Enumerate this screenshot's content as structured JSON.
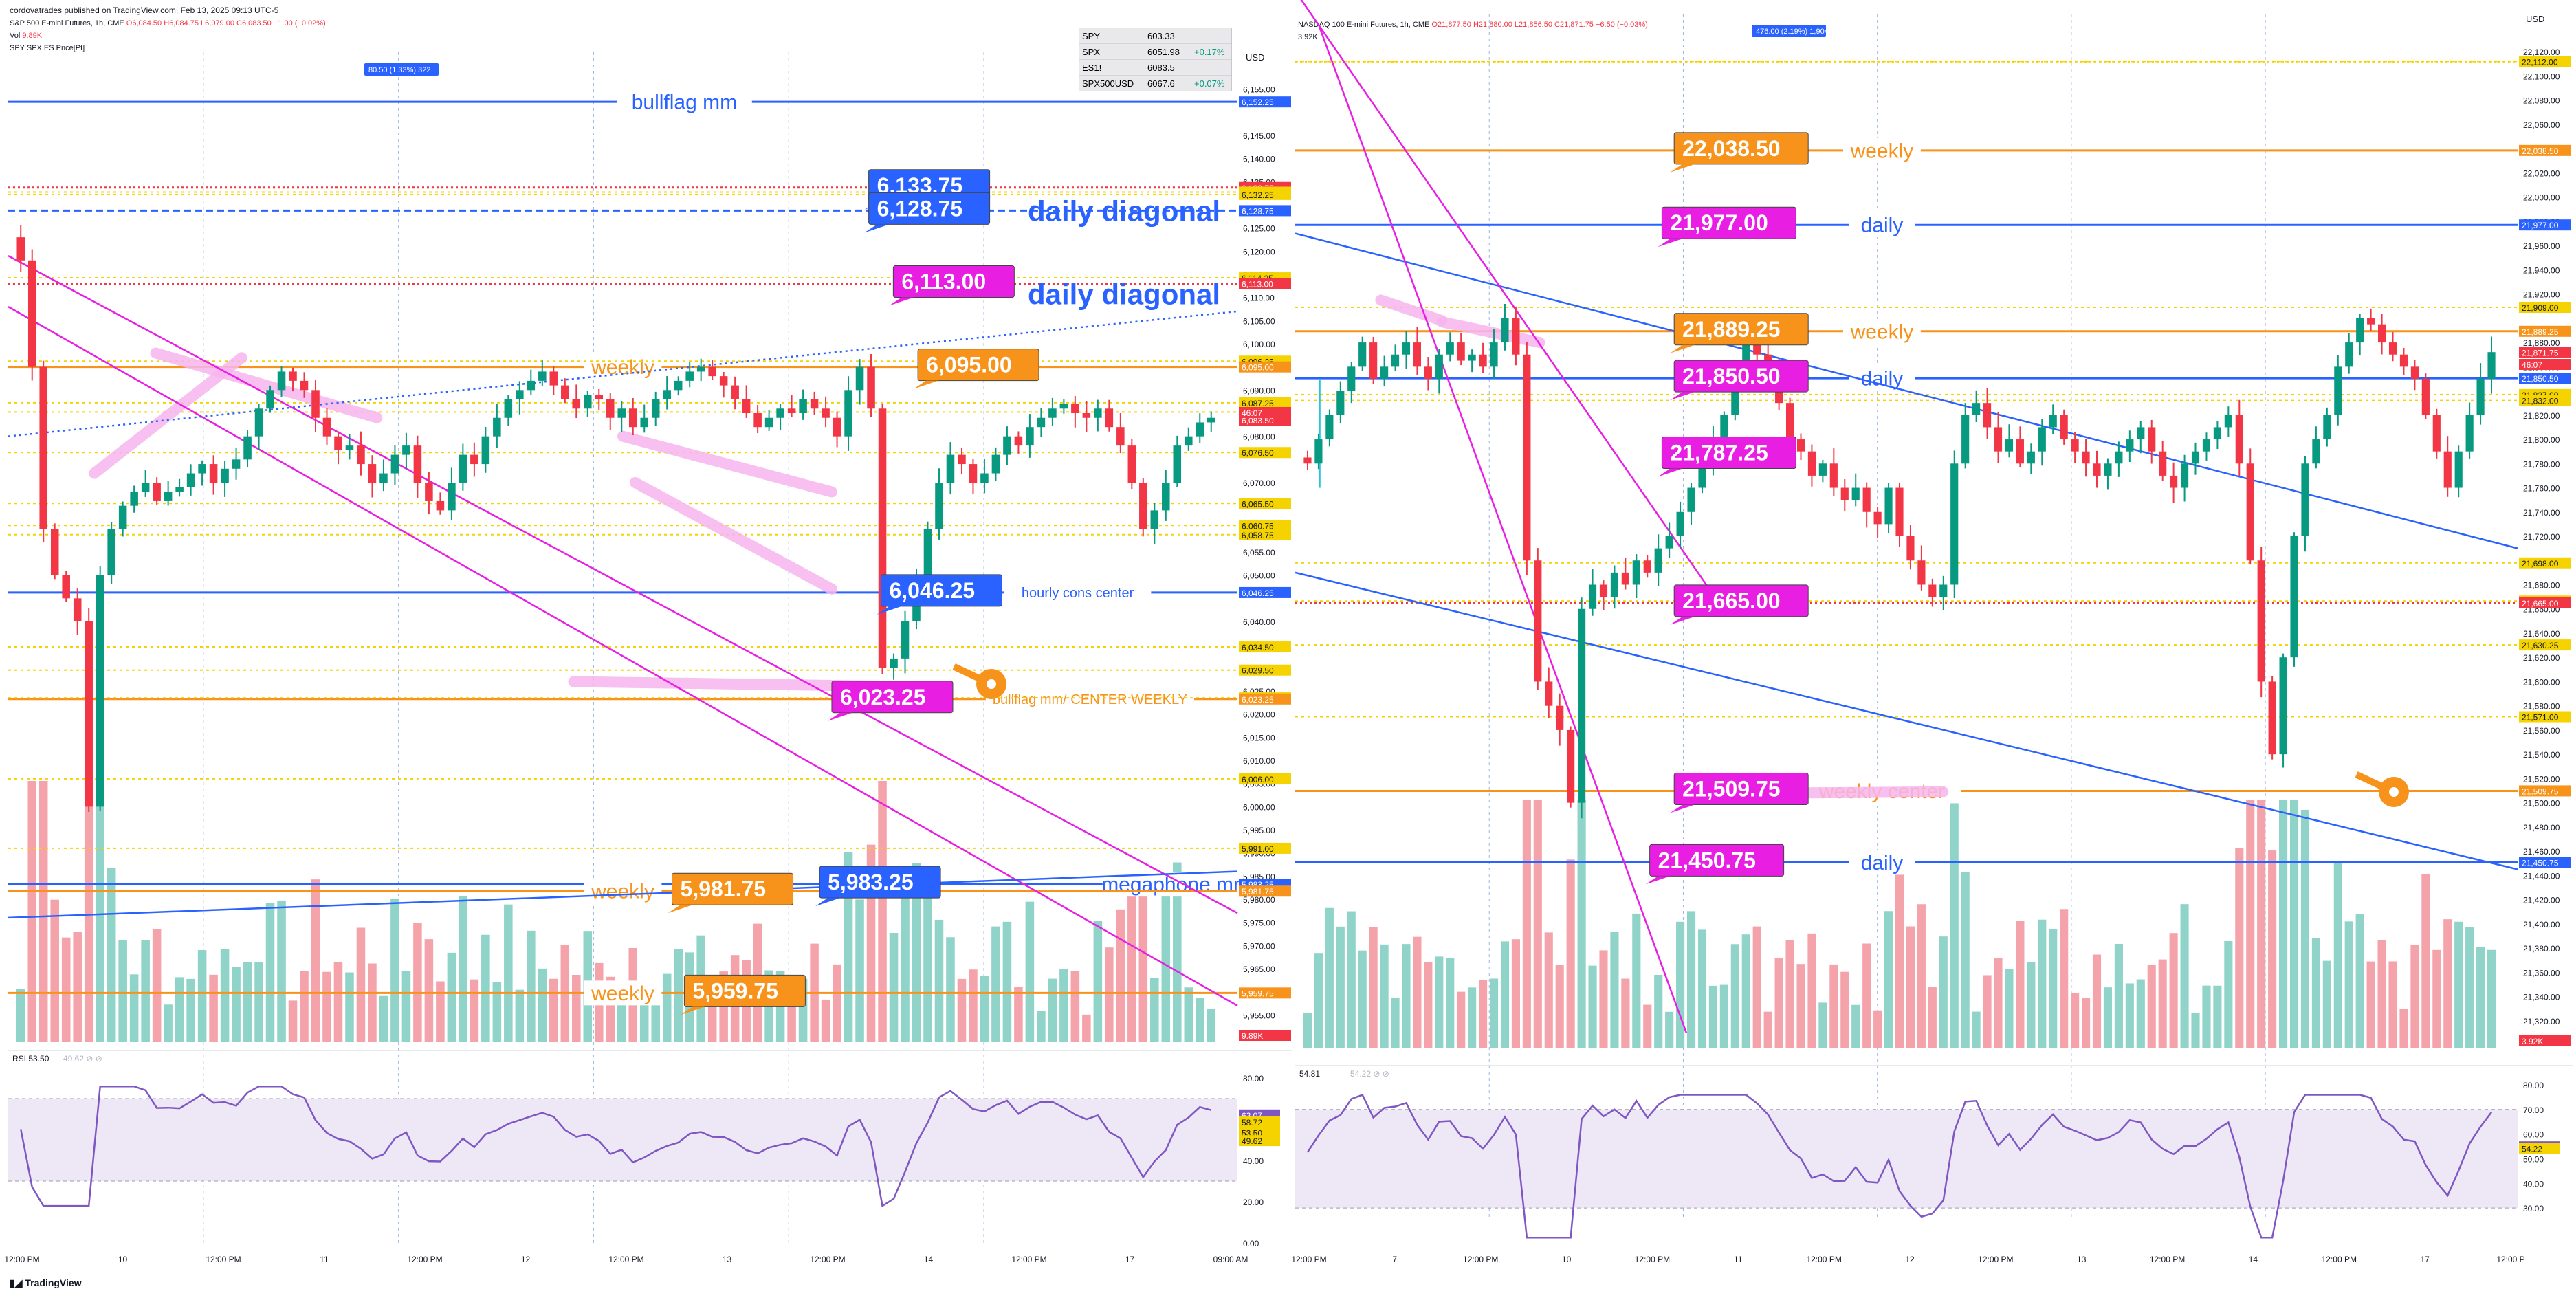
{
  "header": {
    "publisher": "cordovatrades published on TradingView.com, Feb 13, 2025 09:13 UTC-5",
    "brand": "TradingView"
  },
  "colors": {
    "orange": "#f7931a",
    "blue": "#2962ff",
    "magenta": "#e91ee3",
    "pink_highlight": "#f7b6ee",
    "up": "#089981",
    "down": "#f23645",
    "up_vol": "#8fd3c9",
    "down_vol": "#f5a3aa",
    "rsi_line": "#7e57c2",
    "rsi_band": "#ede7f6"
  },
  "left_chart": {
    "title": "S&P 500 E-mini Futures, 1h, CME",
    "ohlc": {
      "o": "O6,084.50",
      "h": "H6,084.75",
      "l": "L6,079.00",
      "c": "C6,083.50",
      "chg": "−1.00 (−0.02%)"
    },
    "vol_label": "Vol",
    "vol_value": "9.89K",
    "indicator_label": "SPY SPX ES Price[Pt]",
    "badge": "80.50 (1.33%) 322",
    "currency": "USD",
    "watchlist": [
      {
        "sym": "SPY",
        "price": "603.33",
        "chg": ""
      },
      {
        "sym": "SPX",
        "price": "6051.98",
        "chg": "+0.17%"
      },
      {
        "sym": "ES1!",
        "price": "6083.5",
        "chg": ""
      },
      {
        "sym": "SPX500USD",
        "price": "6067.6",
        "chg": "+0.07%"
      }
    ],
    "axis_ticks": [
      "6,155.00",
      "6,145.00",
      "6,140.00",
      "6,135.00",
      "6,125.00",
      "6,120.00",
      "6,115.00",
      "6,110.00",
      "6,105.00",
      "6,100.00",
      "6,090.00",
      "6,080.00",
      "6,070.00",
      "6,060.00",
      "6,055.00",
      "6,050.00",
      "6,040.00",
      "6,035.00",
      "6,025.00",
      "6,020.00",
      "6,015.00",
      "6,010.00",
      "6,005.00",
      "6,000.00",
      "5,995.00",
      "5,990.00",
      "5,985.00",
      "5,980.00",
      "5,975.00",
      "5,970.00",
      "5,965.00",
      "5,960.00",
      "5,955.00"
    ],
    "axis_tags": [
      {
        "label": "6,152.25",
        "kind": "blue"
      },
      {
        "label": "6,133.75",
        "kind": "red"
      },
      {
        "label": "6,132.75",
        "kind": "yellow"
      },
      {
        "label": "6,132.25",
        "kind": "yellow"
      },
      {
        "label": "6,128.75",
        "kind": "blue"
      },
      {
        "label": "6,114.25",
        "kind": "yellow"
      },
      {
        "label": "6,113.00",
        "kind": "red"
      },
      {
        "label": "6,096.25",
        "kind": "yellow"
      },
      {
        "label": "6,095.00",
        "kind": "orange"
      },
      {
        "label": "6,087.25",
        "kind": "yellow"
      },
      {
        "label": "6,085.25",
        "kind": "yellow"
      },
      {
        "label": "6,083.50",
        "kind": "red"
      },
      {
        "label": "46:07",
        "kind": "red"
      },
      {
        "label": "6,076.50",
        "kind": "yellow"
      },
      {
        "label": "6,065.50",
        "kind": "yellow"
      },
      {
        "label": "6,060.75",
        "kind": "yellow"
      },
      {
        "label": "6,058.75",
        "kind": "yellow"
      },
      {
        "label": "6,046.25",
        "kind": "blue"
      },
      {
        "label": "6,034.50",
        "kind": "yellow"
      },
      {
        "label": "6,029.50",
        "kind": "yellow"
      },
      {
        "label": "6,023.50",
        "kind": "yellow"
      },
      {
        "label": "6,023.25",
        "kind": "orange"
      },
      {
        "label": "6,006.00",
        "kind": "yellow"
      },
      {
        "label": "5,991.00",
        "kind": "yellow"
      },
      {
        "label": "5,983.25",
        "kind": "blue"
      },
      {
        "label": "5,981.75",
        "kind": "orange"
      },
      {
        "label": "5,959.75",
        "kind": "orange"
      },
      {
        "label": "9.89K",
        "kind": "red"
      }
    ],
    "levels": [
      {
        "price": 6152.25,
        "style": "solid",
        "color": "blue",
        "label": "bullflag mm",
        "label_x": 0.55
      },
      {
        "price": 6133.75,
        "style": "dotted",
        "color": "red",
        "label": ""
      },
      {
        "price": 6128.75,
        "style": "dashed",
        "color": "blue",
        "label": ""
      },
      {
        "price": 6113.0,
        "style": "dotted",
        "color": "red",
        "label": ""
      },
      {
        "price": 6095.0,
        "style": "solid",
        "color": "orange",
        "label": "weekly",
        "label_x": 0.5
      },
      {
        "price": 6046.25,
        "style": "solid",
        "color": "blue",
        "label": "hourly cons center",
        "label_x": 0.87
      },
      {
        "price": 6023.25,
        "style": "solid",
        "color": "orange",
        "label": "bullflag mm/ CENTER WEEKLY",
        "label_x": 0.88
      },
      {
        "price": 5983.25,
        "style": "solid",
        "color": "blue",
        "label": "megaphone mm",
        "label_x": 0.95
      },
      {
        "price": 5981.75,
        "style": "solid",
        "color": "orange",
        "label": "weekly",
        "label_x": 0.5
      },
      {
        "price": 5959.75,
        "style": "solid",
        "color": "orange",
        "label": "weekly",
        "label_x": 0.5
      }
    ],
    "big_labels": [
      "daily diagonal",
      "daily diagonal"
    ],
    "callouts": [
      {
        "text": "6,133.75",
        "color": "blue"
      },
      {
        "text": "6,128.75",
        "color": "blue"
      },
      {
        "text": "6,113.00",
        "color": "magenta"
      },
      {
        "text": "6,095.00",
        "color": "orange"
      },
      {
        "text": "6,046.25",
        "color": "blue"
      },
      {
        "text": "6,023.25",
        "color": "magenta"
      },
      {
        "text": "5,981.75",
        "color": "orange"
      },
      {
        "text": "5,983.25",
        "color": "blue"
      },
      {
        "text": "5,959.75",
        "color": "orange"
      }
    ],
    "rsi_label": "RSI 53.50",
    "rsi_extra": "49.62  ⊘  ⊘",
    "rsi_ticks": [
      "80.00",
      "60.00",
      "40.00",
      "20.00",
      "0.00"
    ],
    "rsi_tags": [
      "62.07",
      "58.72",
      "53.50",
      "49.62"
    ],
    "time_labels": [
      "12:00 PM",
      "10",
      "12:00 PM",
      "11",
      "12:00 PM",
      "12",
      "12:00 PM",
      "13",
      "12:00 PM",
      "14",
      "12:00 PM",
      "17",
      "09:00 AM"
    ]
  },
  "right_chart": {
    "title": "NASDAQ 100 E-mini Futures, 1h, CME",
    "ohlc": {
      "o": "O21,877.50",
      "h": "H21,880.00",
      "l": "L21,856.50",
      "c": "C21,871.75",
      "chg": "−6.50 (−0.03%)"
    },
    "vol_value": "3.92K",
    "badge": "476.00 (2.19%) 1,904",
    "currency": "USD",
    "axis_ticks": [
      "22,120.00",
      "22,100.00",
      "22,080.00",
      "22,060.00",
      "22,040.00",
      "22,020.00",
      "22,000.00",
      "21,980.00",
      "21,960.00",
      "21,940.00",
      "21,920.00",
      "21,880.00",
      "21,860.00",
      "21,820.00",
      "21,800.00",
      "21,780.00",
      "21,760.00",
      "21,740.00",
      "21,720.00",
      "21,700.00",
      "21,680.00",
      "21,660.00",
      "21,640.00",
      "21,620.00",
      "21,600.00",
      "21,580.00",
      "21,560.00",
      "21,540.00",
      "21,520.00",
      "21,500.00",
      "21,480.00",
      "21,460.00",
      "21,440.00",
      "21,420.00",
      "21,400.00",
      "21,380.00",
      "21,360.00",
      "21,340.00",
      "21,320.00"
    ],
    "axis_tags": [
      {
        "label": "22,112.00",
        "kind": "yellow"
      },
      {
        "label": "22,038.50",
        "kind": "orange"
      },
      {
        "label": "21,977.00",
        "kind": "blue"
      },
      {
        "label": "21,909.00",
        "kind": "yellow"
      },
      {
        "label": "21,889.25",
        "kind": "orange"
      },
      {
        "label": "21,871.75",
        "kind": "red"
      },
      {
        "label": "46:07",
        "kind": "red"
      },
      {
        "label": "21,850.50",
        "kind": "blue"
      },
      {
        "label": "21,837.00",
        "kind": "yellow"
      },
      {
        "label": "21,832.00",
        "kind": "yellow"
      },
      {
        "label": "21,698.00",
        "kind": "yellow"
      },
      {
        "label": "21,666.50",
        "kind": "yellow"
      },
      {
        "label": "21,665.00",
        "kind": "red"
      },
      {
        "label": "21,630.25",
        "kind": "yellow"
      },
      {
        "label": "21,571.00",
        "kind": "yellow"
      },
      {
        "label": "21,509.75",
        "kind": "orange"
      },
      {
        "label": "21,450.75",
        "kind": "blue"
      },
      {
        "label": "3.92K",
        "kind": "red"
      }
    ],
    "levels": [
      {
        "price": 22112.0,
        "style": "dotted",
        "color": "yellow",
        "label": ""
      },
      {
        "price": 22038.5,
        "style": "solid",
        "color": "orange",
        "label": "weekly",
        "label_x": 0.48
      },
      {
        "price": 21977.0,
        "style": "solid",
        "color": "blue",
        "label": "daily",
        "label_x": 0.48
      },
      {
        "price": 21889.25,
        "style": "solid",
        "color": "orange",
        "label": "weekly",
        "label_x": 0.48
      },
      {
        "price": 21850.5,
        "style": "solid",
        "color": "blue",
        "label": "daily",
        "label_x": 0.48
      },
      {
        "price": 21665.0,
        "style": "dotted",
        "color": "red",
        "label": ""
      },
      {
        "price": 21509.75,
        "style": "solid",
        "color": "orange",
        "label": "weekly center",
        "label_x": 0.48
      },
      {
        "price": 21450.75,
        "style": "solid",
        "color": "blue",
        "label": "daily",
        "label_x": 0.48
      }
    ],
    "callouts": [
      {
        "text": "22,038.50",
        "color": "orange"
      },
      {
        "text": "21,977.00",
        "color": "magenta"
      },
      {
        "text": "21,889.25",
        "color": "orange"
      },
      {
        "text": "21,850.50",
        "color": "magenta"
      },
      {
        "text": "21,787.25",
        "color": "magenta"
      },
      {
        "text": "21,665.00",
        "color": "magenta"
      },
      {
        "text": "21,509.75",
        "color": "magenta"
      },
      {
        "text": "21,450.75",
        "color": "magenta"
      }
    ],
    "rsi_label": "54.81",
    "rsi_extra": "54.22  ⊘  ⊘",
    "rsi_ticks": [
      "80.00",
      "70.00",
      "60.00",
      "50.00",
      "40.00",
      "30.00"
    ],
    "rsi_tags": [
      "54.81",
      "54.22"
    ],
    "time_labels": [
      "12:00 PM",
      "7",
      "12:00 PM",
      "10",
      "12:00 PM",
      "11",
      "12:00 PM",
      "12",
      "12:00 PM",
      "13",
      "12:00 PM",
      "14",
      "12:00 PM",
      "17",
      "12:00 P"
    ]
  },
  "chart_data": [
    {
      "type": "candlestick",
      "title": "S&P 500 E-mini Futures, 1h, CME",
      "ylim": [
        5950,
        6160
      ],
      "x_count": 120,
      "close_path": [
        6118,
        6095,
        6060,
        6050,
        6045,
        6040,
        6000,
        6050,
        6060,
        6065,
        6068,
        6070,
        6066,
        6068,
        6069,
        6072,
        6074,
        6070,
        6073,
        6075,
        6080,
        6086,
        6090,
        6094,
        6092,
        6090,
        6084,
        6080,
        6077,
        6078,
        6074,
        6070,
        6072,
        6076,
        6078,
        6070,
        6066,
        6064,
        6070,
        6076,
        6074,
        6080,
        6084,
        6088,
        6090,
        6092,
        6094,
        6091,
        6088,
        6086,
        6089,
        6088,
        6084,
        6086,
        6082,
        6084,
        6088,
        6090,
        6092,
        6094,
        6095,
        6093,
        6091,
        6088,
        6085,
        6082,
        6084,
        6086,
        6085,
        6088,
        6086,
        6084,
        6080,
        6090,
        6095,
        6086,
        6030,
        6032,
        6040,
        6050,
        6060,
        6070,
        6076,
        6074,
        6070,
        6072,
        6076,
        6080,
        6078,
        6082,
        6084,
        6086,
        6087,
        6085,
        6084,
        6086,
        6082,
        6078,
        6070,
        6060,
        6064,
        6070,
        6078,
        6080,
        6083,
        6084
      ]
    },
    {
      "type": "candlestick",
      "title": "NASDAQ 100 E-mini Futures, 1h, CME",
      "ylim": [
        21300,
        22140
      ],
      "x_count": 120,
      "close_path": [
        21780,
        21800,
        21820,
        21840,
        21860,
        21880,
        21850,
        21860,
        21870,
        21880,
        21860,
        21850,
        21870,
        21880,
        21865,
        21870,
        21860,
        21880,
        21900,
        21870,
        21700,
        21600,
        21580,
        21560,
        21500,
        21660,
        21680,
        21670,
        21690,
        21680,
        21700,
        21690,
        21710,
        21720,
        21740,
        21760,
        21780,
        21800,
        21820,
        21850,
        21880,
        21870,
        21860,
        21830,
        21800,
        21790,
        21770,
        21780,
        21760,
        21750,
        21760,
        21740,
        21730,
        21760,
        21720,
        21700,
        21680,
        21670,
        21680,
        21780,
        21820,
        21830,
        21810,
        21790,
        21800,
        21780,
        21790,
        21810,
        21820,
        21800,
        21790,
        21780,
        21770,
        21780,
        21790,
        21800,
        21810,
        21790,
        21770,
        21760,
        21780,
        21790,
        21800,
        21810,
        21820,
        21780,
        21700,
        21600,
        21540,
        21620,
        21720,
        21780,
        21800,
        21820,
        21860,
        21880,
        21900,
        21895,
        21880,
        21870,
        21860,
        21850,
        21820,
        21790,
        21760,
        21790,
        21820,
        21850,
        21872
      ]
    }
  ]
}
